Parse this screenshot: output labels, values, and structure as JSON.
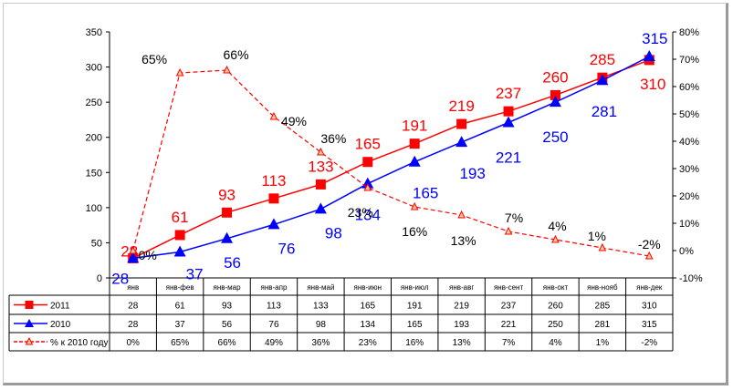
{
  "chart_data": {
    "type": "line",
    "categories": [
      "янв",
      "янв-фев",
      "янв-мар",
      "янв-апр",
      "янв-май",
      "янв-июн",
      "янв-июл",
      "янв-авг",
      "янв-сент",
      "янв-окт",
      "янв-нояб",
      "янв-дек"
    ],
    "series": [
      {
        "name": "2011",
        "axis": "left",
        "color": "#ff0000",
        "marker": "square",
        "line": "solid",
        "values": [
          28,
          61,
          93,
          113,
          133,
          165,
          191,
          219,
          237,
          260,
          285,
          310
        ],
        "table_values": [
          "28",
          "61",
          "93",
          "113",
          "133",
          "165",
          "191",
          "219",
          "237",
          "260",
          "285",
          "310"
        ],
        "data_labels": [
          "28",
          "61",
          "93",
          "113",
          "133",
          "165",
          "191",
          "219",
          "237",
          "260",
          "285",
          "310"
        ]
      },
      {
        "name": "2010",
        "axis": "left",
        "color": "#0000ff",
        "marker": "triangle",
        "line": "solid",
        "values": [
          28,
          37,
          56,
          76,
          98,
          134,
          165,
          193,
          221,
          250,
          281,
          315
        ],
        "table_values": [
          "28",
          "37",
          "56",
          "76",
          "98",
          "134",
          "165",
          "193",
          "221",
          "250",
          "281",
          "315"
        ],
        "data_labels": [
          "28",
          "37",
          "56",
          "76",
          "98",
          "134",
          "165",
          "193",
          "221",
          "250",
          "281",
          "315"
        ]
      },
      {
        "name": "% к 2010 году",
        "axis": "right",
        "color": "#ff0000",
        "marker": "triangle-open",
        "line": "dashed",
        "values": [
          0,
          65,
          66,
          49,
          36,
          23,
          16,
          13,
          7,
          4,
          1,
          -2
        ],
        "table_values": [
          "0%",
          "65%",
          "66%",
          "49%",
          "36%",
          "23%",
          "16%",
          "13%",
          "7%",
          "4%",
          "1%",
          "-2%"
        ],
        "data_labels": [
          "0%",
          "65%",
          "66%",
          "49%",
          "36%",
          "23%",
          "16%",
          "13%",
          "7%",
          "4%",
          "1%",
          "-2%"
        ]
      }
    ],
    "y_left": {
      "ylim": [
        0,
        350
      ],
      "ticks": [
        "0",
        "50",
        "100",
        "150",
        "200",
        "250",
        "300",
        "350"
      ]
    },
    "y_right": {
      "ylim": [
        -10,
        80
      ],
      "ticks": [
        "-10%",
        "0%",
        "10%",
        "20%",
        "30%",
        "40%",
        "50%",
        "60%",
        "70%",
        "80%"
      ]
    },
    "grid": false,
    "legend": "data-table"
  }
}
